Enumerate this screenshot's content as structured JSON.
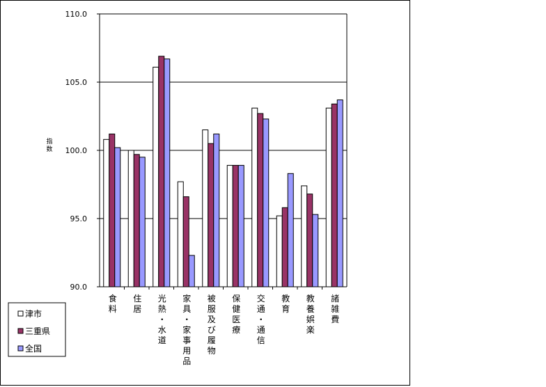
{
  "chart_data": {
    "type": "bar",
    "title": "",
    "xlabel": "",
    "ylabel": "指数",
    "ylim": [
      90,
      110
    ],
    "yticks": [
      "90.0",
      "95.0",
      "100.0",
      "105.0",
      "110.0"
    ],
    "grid": true,
    "legend_position": "bottom-left",
    "categories": [
      "食料",
      "住居",
      "光熱・水道",
      "家具・家事用品",
      "被服及び履物",
      "保健医療",
      "交通・通信",
      "教育",
      "教養娯楽",
      "諸雑費"
    ],
    "series": [
      {
        "name": "津市",
        "color": "#ffffff",
        "values": [
          100.8,
          100.0,
          106.1,
          97.7,
          101.5,
          98.9,
          103.1,
          95.2,
          97.4,
          103.1
        ]
      },
      {
        "name": "三重県",
        "color": "#993366",
        "values": [
          101.2,
          99.7,
          106.9,
          96.6,
          100.5,
          98.9,
          102.7,
          95.8,
          96.8,
          103.4
        ]
      },
      {
        "name": "全国",
        "color": "#9999ff",
        "values": [
          100.2,
          99.5,
          106.7,
          92.3,
          101.2,
          98.9,
          102.3,
          98.3,
          95.3,
          103.7
        ]
      }
    ]
  }
}
